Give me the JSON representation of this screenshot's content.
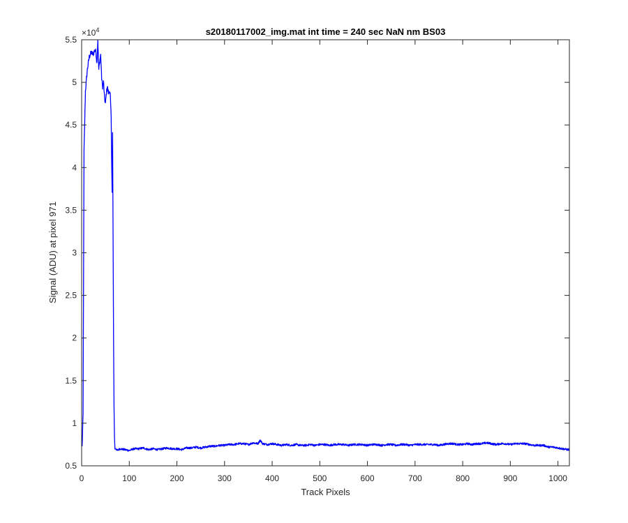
{
  "chart_data": {
    "type": "line",
    "title": "s20180117002_img.mat int time = 240 sec  NaN nm BS03",
    "xlabel": "Track Pixels",
    "ylabel": "Signal (ADU) at pixel 971",
    "y_exponent_label": "×10",
    "y_exponent_power": "4",
    "xlim": [
      0,
      1024
    ],
    "ylim": [
      0.5,
      5.5
    ],
    "y_scale_factor": 10000,
    "grid": false,
    "legend": "none",
    "line_color": "#0000ff",
    "x_ticks": [
      "0",
      "100",
      "200",
      "300",
      "400",
      "500",
      "600",
      "700",
      "800",
      "900",
      "1000"
    ],
    "x_tick_values": [
      0,
      100,
      200,
      300,
      400,
      500,
      600,
      700,
      800,
      900,
      1000
    ],
    "y_ticks": [
      "0.5",
      "1",
      "1.5",
      "2",
      "2.5",
      "3",
      "3.5",
      "4",
      "4.5",
      "5",
      "5.5"
    ],
    "y_tick_values": [
      0.5,
      1,
      1.5,
      2,
      2.5,
      3,
      3.5,
      4,
      4.5,
      5,
      5.5
    ],
    "series": [
      {
        "x": [
          1,
          3,
          5,
          8,
          12,
          16,
          20,
          24,
          28,
          30,
          32,
          34,
          36,
          38,
          40,
          42,
          44,
          46,
          48,
          50,
          52,
          54,
          56,
          58,
          60,
          62,
          63,
          64,
          65,
          66,
          67,
          68,
          69,
          70,
          72,
          75,
          80,
          90,
          100,
          110,
          120,
          130,
          140,
          150,
          160,
          170,
          180,
          190,
          200,
          210,
          220,
          230,
          240,
          250,
          260,
          270,
          280,
          290,
          300,
          310,
          320,
          330,
          340,
          350,
          360,
          370,
          375,
          380,
          390,
          400,
          410,
          420,
          430,
          440,
          450,
          460,
          470,
          480,
          490,
          500,
          510,
          520,
          530,
          540,
          550,
          560,
          570,
          580,
          590,
          600,
          610,
          620,
          630,
          640,
          650,
          660,
          670,
          680,
          690,
          700,
          710,
          720,
          730,
          740,
          750,
          760,
          770,
          780,
          790,
          800,
          810,
          820,
          830,
          840,
          850,
          860,
          870,
          880,
          890,
          900,
          910,
          920,
          930,
          940,
          950,
          960,
          970,
          980,
          990,
          1000,
          1010,
          1020,
          1024
        ],
        "y": [
          0.72,
          1.1,
          4.2,
          4.9,
          5.15,
          5.3,
          5.35,
          5.33,
          5.38,
          5.36,
          5.22,
          5.5,
          5.15,
          5.25,
          5.32,
          5.05,
          4.95,
          5.0,
          4.82,
          4.75,
          4.88,
          4.95,
          4.88,
          4.9,
          4.85,
          4.6,
          4.1,
          3.7,
          4.4,
          3.2,
          2.0,
          1.2,
          0.82,
          0.7,
          0.7,
          0.68,
          0.7,
          0.69,
          0.68,
          0.7,
          0.7,
          0.71,
          0.69,
          0.7,
          0.69,
          0.7,
          0.71,
          0.7,
          0.7,
          0.69,
          0.71,
          0.71,
          0.72,
          0.71,
          0.72,
          0.73,
          0.73,
          0.74,
          0.74,
          0.75,
          0.75,
          0.76,
          0.76,
          0.75,
          0.77,
          0.76,
          0.8,
          0.76,
          0.75,
          0.76,
          0.75,
          0.74,
          0.75,
          0.74,
          0.75,
          0.74,
          0.74,
          0.75,
          0.74,
          0.75,
          0.75,
          0.74,
          0.75,
          0.75,
          0.75,
          0.74,
          0.75,
          0.75,
          0.75,
          0.74,
          0.75,
          0.75,
          0.74,
          0.75,
          0.75,
          0.74,
          0.75,
          0.75,
          0.74,
          0.75,
          0.75,
          0.75,
          0.75,
          0.75,
          0.74,
          0.75,
          0.76,
          0.76,
          0.75,
          0.75,
          0.76,
          0.75,
          0.76,
          0.76,
          0.77,
          0.76,
          0.75,
          0.76,
          0.76,
          0.75,
          0.76,
          0.76,
          0.76,
          0.75,
          0.74,
          0.74,
          0.74,
          0.72,
          0.72,
          0.71,
          0.7,
          0.69,
          0.69
        ]
      }
    ]
  }
}
